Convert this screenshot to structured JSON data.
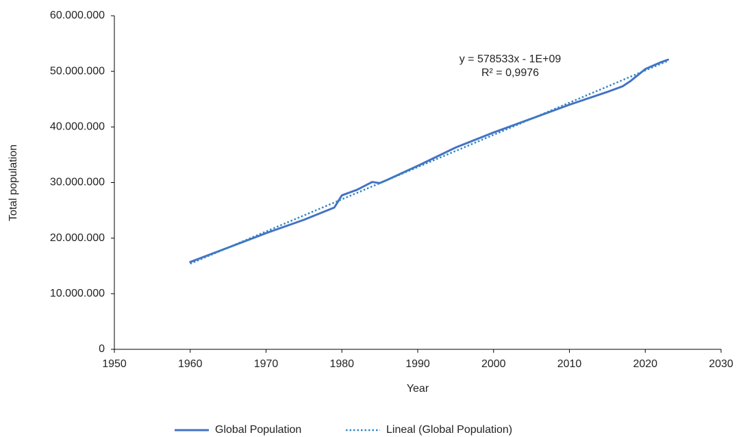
{
  "chart_data": {
    "type": "line",
    "x_label": "Year",
    "y_label": "Total population",
    "annotations": [
      "y = 578533x - 1E+09",
      "R² = 0,9976"
    ],
    "xlim": [
      1950,
      2030
    ],
    "xticks": [
      1950,
      1960,
      1970,
      1980,
      1990,
      2000,
      2010,
      2020,
      2030
    ],
    "ylim": [
      0,
      60000000
    ],
    "yticks": [
      0,
      {
        "value": 10000000,
        "label": "10.000.000"
      },
      {
        "value": 20000000,
        "label": "20.000.000"
      },
      {
        "value": 30000000,
        "label": "30.000.000"
      },
      {
        "value": 40000000,
        "label": "40.000.000"
      },
      {
        "value": 50000000,
        "label": "50.000.000"
      },
      {
        "value": 60000000,
        "label": "60.000.000"
      }
    ],
    "grid": false,
    "legend": "bottom",
    "series": [
      {
        "name": "Global Population",
        "color": "#4472c4",
        "style": "solid",
        "x": [
          1960,
          1965,
          1970,
          1975,
          1979,
          1980,
          1982,
          1984,
          1985,
          1986,
          1990,
          1995,
          2000,
          2005,
          2010,
          2015,
          2017,
          2018,
          2020,
          2022,
          2023
        ],
        "values": [
          15700000,
          18300000,
          20900000,
          23300000,
          25500000,
          27700000,
          28700000,
          30100000,
          29900000,
          30500000,
          33000000,
          36300000,
          39000000,
          41500000,
          44000000,
          46300000,
          47300000,
          48200000,
          50400000,
          51600000,
          52100000
        ]
      },
      {
        "name": "Lineal (Global Population)",
        "color": "#2e86c1",
        "style": "dotted",
        "x": [
          1960,
          2023
        ],
        "values": [
          15400000,
          51900000
        ]
      }
    ]
  }
}
